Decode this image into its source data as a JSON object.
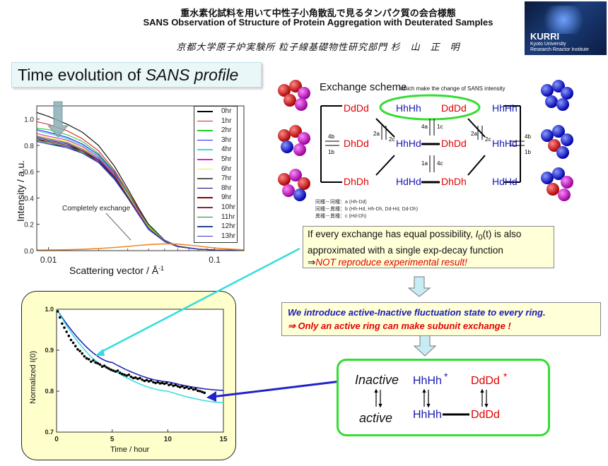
{
  "header": {
    "title_jp": "重水素化試料を用いて中性子小角散乱で見るタンパク質の会合様態",
    "title_en": "SANS Observation of Structure of Protein Aggregation with Deuterated Samples",
    "authors": "京都大学原子炉実験所 粒子線基礎物性研究部門 杉　山　正　明"
  },
  "logo": {
    "name": "KURRI",
    "line1": "Kyoto University",
    "line2": "Research Reactor Institute"
  },
  "section_title": {
    "prefix": "Time evolution of ",
    "italic": "SANS profile"
  },
  "chart_data": [
    {
      "type": "line",
      "title": "",
      "xlabel": "Scattering vector / Å",
      "xlabel_sup": "-1",
      "ylabel": "Intensity / a.u.",
      "xscale": "log",
      "xlim": [
        0.0085,
        0.15
      ],
      "ylim": [
        0,
        1.1
      ],
      "x_tick_labels": [
        "0.01",
        "0.1"
      ],
      "y_tick_labels": [
        "0.0",
        "0.2",
        "0.4",
        "0.6",
        "0.8",
        "1.0"
      ],
      "annotation": "Completely exchange",
      "legend": "top-right",
      "x": [
        0.0085,
        0.01,
        0.013,
        0.016,
        0.02,
        0.025,
        0.03,
        0.035,
        0.04,
        0.05,
        0.06,
        0.08,
        0.1,
        0.15
      ],
      "series": [
        {
          "name": "0hr",
          "color": "#000000",
          "values": [
            1.05,
            1.02,
            0.96,
            0.9,
            0.8,
            0.64,
            0.47,
            0.32,
            0.2,
            0.08,
            0.035,
            0.012,
            0.006,
            0.003
          ]
        },
        {
          "name": "1hr",
          "color": "#e02020",
          "values": [
            0.98,
            0.96,
            0.91,
            0.85,
            0.76,
            0.61,
            0.45,
            0.31,
            0.19,
            0.078,
            0.034,
            0.012,
            0.006,
            0.003
          ]
        },
        {
          "name": "2hr",
          "color": "#22cc22",
          "values": [
            0.93,
            0.92,
            0.88,
            0.83,
            0.74,
            0.6,
            0.44,
            0.3,
            0.19,
            0.077,
            0.033,
            0.012,
            0.006,
            0.003
          ]
        },
        {
          "name": "3hr",
          "color": "#2222ee",
          "values": [
            0.92,
            0.9,
            0.86,
            0.81,
            0.73,
            0.59,
            0.43,
            0.3,
            0.18,
            0.076,
            0.033,
            0.012,
            0.006,
            0.003
          ]
        },
        {
          "name": "4hr",
          "color": "#33dddd",
          "values": [
            0.91,
            0.89,
            0.85,
            0.8,
            0.72,
            0.58,
            0.43,
            0.29,
            0.18,
            0.075,
            0.032,
            0.012,
            0.006,
            0.003
          ]
        },
        {
          "name": "5hr",
          "color": "#dd22dd",
          "values": [
            0.89,
            0.87,
            0.84,
            0.79,
            0.71,
            0.58,
            0.42,
            0.29,
            0.18,
            0.074,
            0.032,
            0.012,
            0.006,
            0.003
          ]
        },
        {
          "name": "6hr",
          "color": "#eeee22",
          "values": [
            0.88,
            0.86,
            0.83,
            0.78,
            0.7,
            0.57,
            0.42,
            0.29,
            0.18,
            0.073,
            0.032,
            0.012,
            0.006,
            0.003
          ]
        },
        {
          "name": "7hr",
          "color": "#555555",
          "values": [
            0.87,
            0.85,
            0.82,
            0.77,
            0.7,
            0.57,
            0.41,
            0.28,
            0.17,
            0.072,
            0.031,
            0.011,
            0.006,
            0.003
          ]
        },
        {
          "name": "8hr",
          "color": "#000088",
          "values": [
            0.86,
            0.84,
            0.81,
            0.76,
            0.69,
            0.56,
            0.41,
            0.28,
            0.17,
            0.071,
            0.031,
            0.011,
            0.006,
            0.003
          ]
        },
        {
          "name": "9hr",
          "color": "#880000",
          "values": [
            0.85,
            0.83,
            0.8,
            0.76,
            0.68,
            0.56,
            0.41,
            0.28,
            0.17,
            0.07,
            0.031,
            0.011,
            0.006,
            0.003
          ]
        },
        {
          "name": "10hr",
          "color": "#882244",
          "values": [
            0.84,
            0.83,
            0.8,
            0.75,
            0.68,
            0.55,
            0.4,
            0.28,
            0.17,
            0.07,
            0.03,
            0.011,
            0.006,
            0.003
          ]
        },
        {
          "name": "11hr",
          "color": "#118811",
          "values": [
            0.84,
            0.82,
            0.79,
            0.75,
            0.67,
            0.55,
            0.4,
            0.27,
            0.17,
            0.069,
            0.03,
            0.011,
            0.006,
            0.003
          ]
        },
        {
          "name": "12hr",
          "color": "#224488",
          "values": [
            0.83,
            0.81,
            0.79,
            0.74,
            0.67,
            0.55,
            0.4,
            0.27,
            0.17,
            0.069,
            0.03,
            0.011,
            0.006,
            0.003
          ]
        },
        {
          "name": "13hr",
          "color": "#3333cc",
          "values": [
            0.83,
            0.81,
            0.78,
            0.74,
            0.67,
            0.54,
            0.4,
            0.27,
            0.16,
            0.068,
            0.03,
            0.011,
            0.006,
            0.003
          ]
        },
        {
          "name": "Completely exchange",
          "color": "#ee8822",
          "values": [
            0.004,
            0.005,
            0.007,
            0.01,
            0.016,
            0.024,
            0.032,
            0.04,
            0.046,
            0.052,
            0.05,
            0.035,
            0.02,
            0.006
          ]
        }
      ]
    },
    {
      "type": "scatter",
      "title": "",
      "xlabel": "Time / hour",
      "ylabel": "Normalized I(0)",
      "xlim": [
        0,
        15
      ],
      "ylim": [
        0.7,
        1.0
      ],
      "x_tick_labels": [
        "0",
        "5",
        "10",
        "15"
      ],
      "y_tick_labels": [
        "0.7",
        "0.8",
        "0.9",
        "1.0"
      ],
      "points": {
        "x": [
          0.1,
          0.3,
          0.5,
          0.7,
          0.9,
          1.1,
          1.3,
          1.5,
          1.7,
          1.9,
          2.1,
          2.3,
          2.5,
          2.7,
          2.9,
          3.1,
          3.3,
          3.5,
          3.7,
          3.9,
          4.1,
          4.3,
          4.5,
          4.7,
          4.9,
          5.1,
          5.3,
          5.5,
          5.7,
          5.9,
          6.1,
          6.3,
          6.5,
          6.7,
          6.9,
          7.1,
          7.3,
          7.5,
          7.7,
          7.9,
          8.1,
          8.3,
          8.5,
          8.7,
          8.9,
          9.1,
          9.3,
          9.5,
          9.7,
          9.9,
          10.1,
          10.3,
          10.5,
          10.7,
          10.9,
          11.1,
          11.3,
          11.5,
          11.7,
          11.9,
          12.1,
          12.3,
          12.5,
          12.7,
          12.9,
          13.1,
          13.3
        ],
        "y": [
          0.995,
          0.98,
          0.965,
          0.955,
          0.945,
          0.935,
          0.925,
          0.918,
          0.91,
          0.902,
          0.898,
          0.892,
          0.885,
          0.88,
          0.878,
          0.872,
          0.875,
          0.87,
          0.868,
          0.865,
          0.86,
          0.862,
          0.858,
          0.855,
          0.852,
          0.85,
          0.848,
          0.85,
          0.845,
          0.842,
          0.84,
          0.838,
          0.84,
          0.835,
          0.832,
          0.833,
          0.83,
          0.832,
          0.828,
          0.825,
          0.827,
          0.824,
          0.826,
          0.822,
          0.82,
          0.822,
          0.819,
          0.82,
          0.818,
          0.82,
          0.815,
          0.817,
          0.813,
          0.815,
          0.812,
          0.81,
          0.812,
          0.808,
          0.81,
          0.806,
          0.808,
          0.804,
          0.805,
          0.801,
          0.8,
          0.798,
          0.796
        ]
      },
      "series": [
        {
          "name": "fit",
          "color": "#1a1ab0",
          "values": [
            1.0,
            0.87,
            0.823,
            0.802
          ]
        },
        {
          "name": "single-exp",
          "color": "#33dddd",
          "values": [
            1.0,
            0.853,
            0.8,
            0.772
          ]
        }
      ],
      "series_x": [
        0,
        5,
        10,
        15
      ]
    }
  ],
  "scheme": {
    "title": "Exchange scheme",
    "subtitle": "which make the change of SANS intensity",
    "nodes": {
      "DdDd_top": "DdDd",
      "HhHh_top1": "HhHh",
      "DdDd_top2": "DdDd",
      "HhHh_top2": "HhHh",
      "DhDd": "DhDd",
      "HhHd_l": "HhHd",
      "DhDd_m": "DhDd",
      "HhHd_r": "HhHd",
      "DhDh": "DhDh",
      "HdHd_l": "HdHd",
      "DhDh_m": "DhDh",
      "HdHd_r": "HdHd"
    },
    "arrows": {
      "a4b_l": "4b",
      "a1b_l": "1b",
      "a2a_l": "2a",
      "a2c_l": "2c",
      "a4a": "4a",
      "a1c": "1c",
      "a1a": "1a",
      "a4c": "4c",
      "a2a_r": "2a",
      "a2c_r": "2c",
      "a4b_r": "4b",
      "a1b_r": "1b"
    },
    "footnote": [
      "同種－同種：a (Hh-Dd)",
      "同種－異種：b (Hh-Hd, Hh-Dh, Dd-Hd, Dd-Dh)",
      "異種－異種：c (Hd-Dh)"
    ],
    "colors": {
      "red": "#e00000",
      "blue": "#1a1ab0",
      "green": "#33dd33"
    }
  },
  "note": {
    "line1_a": "If every exchange has equal possibility, ",
    "line1_b": "I",
    "line1_c": "0",
    "line1_d": "(t) is also",
    "line2": "approximated with a single exp-decay function",
    "line3_arrow": "⇒",
    "line3": "NOT reproduce experimental result!"
  },
  "fluctuation": {
    "line1": "We introduce active-Inactive fluctuation state to every ring.",
    "line2": "⇒ Only an active ring can make subunit exchange !"
  },
  "states": {
    "inactive": "Inactive",
    "active": "active",
    "hhhh_star": "HhHh",
    "dddd_star": "DdDd",
    "star": "*",
    "hhhh": "HhHh",
    "dddd": "DdDd"
  }
}
